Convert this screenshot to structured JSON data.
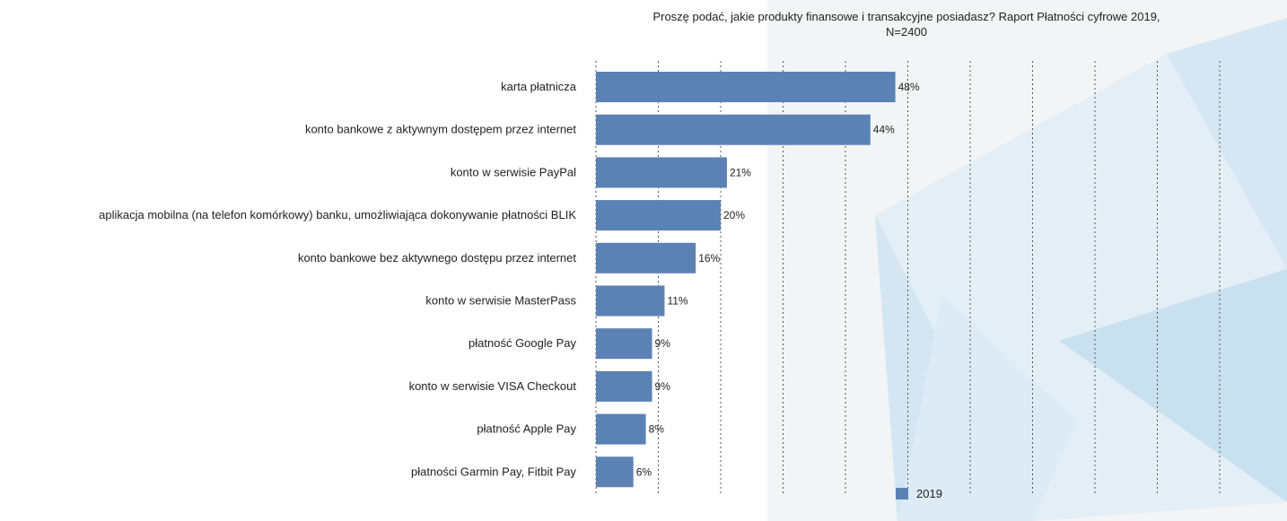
{
  "title_line1": "Proszę podać, jakie produkty finansowe i transakcyjne posiadasz? Raport Płatności cyfrowe 2019,",
  "title_line2": "N=2400",
  "colors": {
    "bar": "#5b82b4"
  },
  "chart_data": {
    "type": "bar",
    "orientation": "horizontal",
    "categories": [
      "karta płatnicza",
      "konto bankowe z aktywnym dostępem przez internet",
      "konto w serwisie PayPal",
      "aplikacja mobilna (na telefon komórkowy) banku, umożliwiająca dokonywanie płatności BLIK",
      "konto bankowe bez aktywnego dostępu przez internet",
      "konto w serwisie MasterPass",
      "płatność Google Pay",
      "konto w serwisie VISA Checkout",
      "płatność Apple Pay",
      "płatności Garmin Pay, Fitbit Pay"
    ],
    "series": [
      {
        "name": "2019",
        "values": [
          48,
          44,
          21,
          20,
          16,
          11,
          9,
          9,
          8,
          6
        ]
      }
    ],
    "data_labels": [
      "48%",
      "44%",
      "21%",
      "20%",
      "16%",
      "11%",
      "9%",
      "9%",
      "8%",
      "6%"
    ],
    "xlim": [
      0,
      100
    ],
    "grid": true,
    "legend_position": "bottom-right"
  }
}
